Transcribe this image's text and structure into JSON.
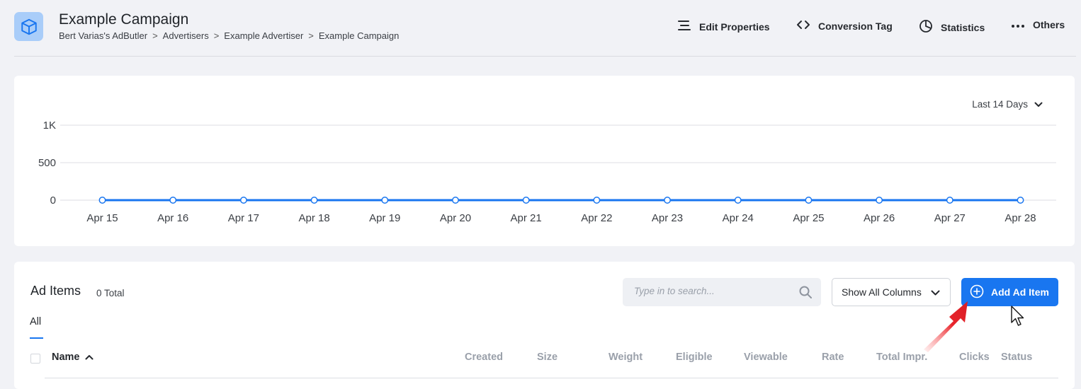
{
  "header": {
    "title": "Example Campaign",
    "breadcrumb": [
      "Bert Varias's AdButler",
      "Advertisers",
      "Example Advertiser",
      "Example Campaign"
    ],
    "breadcrumb_separator": ">",
    "actions": [
      {
        "label": "Edit Properties",
        "icon": "edit-properties-icon"
      },
      {
        "label": "Conversion Tag",
        "icon": "code-icon"
      },
      {
        "label": "Statistics",
        "icon": "pie-chart-icon"
      },
      {
        "label": "Others",
        "icon": "more-dots-icon"
      }
    ]
  },
  "chart": {
    "range_label": "Last 14 Days"
  },
  "chart_data": {
    "type": "line",
    "categories": [
      "Apr 15",
      "Apr 16",
      "Apr 17",
      "Apr 18",
      "Apr 19",
      "Apr 20",
      "Apr 21",
      "Apr 22",
      "Apr 23",
      "Apr 24",
      "Apr 25",
      "Apr 26",
      "Apr 27",
      "Apr 28"
    ],
    "series": [
      {
        "values": [
          0,
          0,
          0,
          0,
          0,
          0,
          0,
          0,
          0,
          0,
          0,
          0,
          0,
          0
        ]
      }
    ],
    "yticks": [
      "0",
      "500",
      "1K"
    ],
    "ylim": [
      0,
      1000
    ],
    "grid": true,
    "color": "#1976f0"
  },
  "ad_items": {
    "title": "Ad Items",
    "count": "0 Total",
    "search_placeholder": "Type in to search...",
    "columns_select": "Show All Columns",
    "add_button": "Add Ad Item",
    "tab": "All",
    "columns": {
      "name": "Name",
      "created": "Created",
      "size": "Size",
      "weight": "Weight",
      "eligible": "Eligible",
      "viewable": "Viewable",
      "rate": "Rate",
      "total_impr": "Total Impr.",
      "clicks": "Clicks",
      "status": "Status"
    }
  },
  "colors": {
    "accent": "#1976f0",
    "annotation_arrow": "#e8242b"
  }
}
